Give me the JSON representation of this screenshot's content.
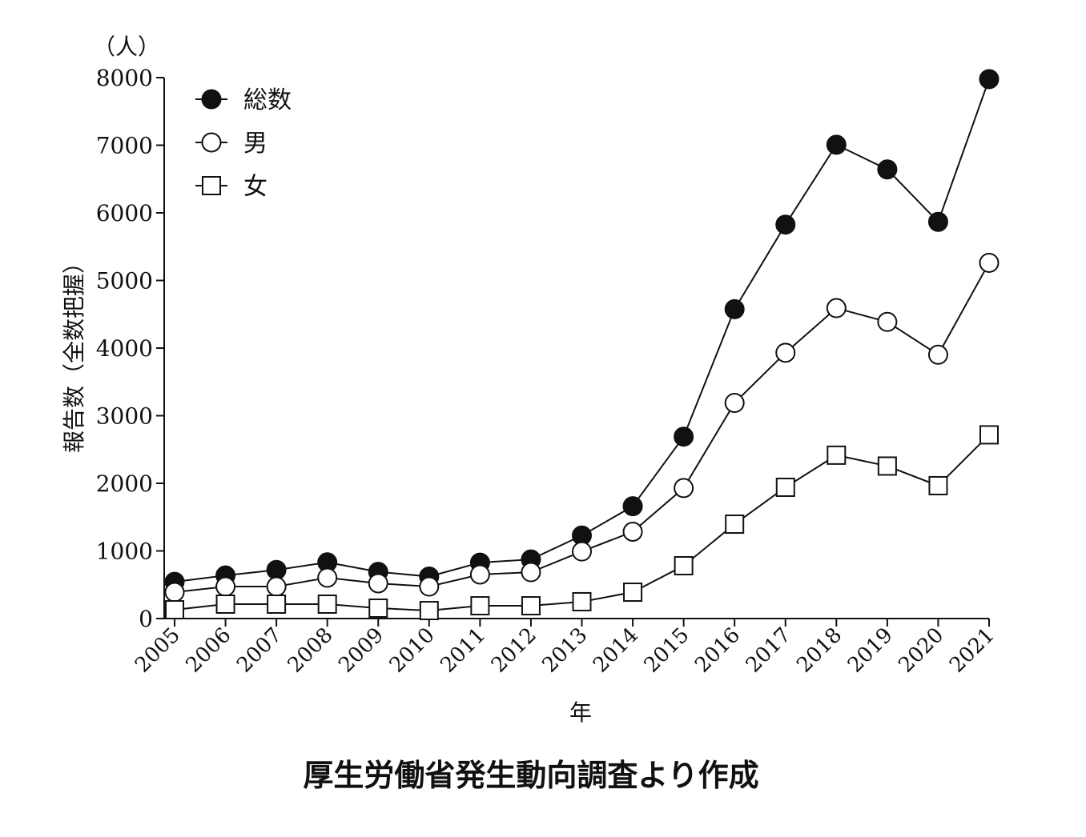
{
  "chart_data": {
    "type": "line",
    "title": "厚生労働省発生動向調査より作成",
    "xlabel": "年",
    "ylabel": "報告数（全数把握）",
    "yunit": "（人）",
    "ylim": [
      0,
      8000
    ],
    "yticks": [
      0,
      1000,
      2000,
      3000,
      4000,
      5000,
      6000,
      7000,
      8000
    ],
    "grid": false,
    "legend_position": "top-left",
    "x": [
      "2005",
      "2006",
      "2007",
      "2008",
      "2009",
      "2010",
      "2011",
      "2012",
      "2013",
      "2014",
      "2015",
      "2016",
      "2017",
      "2018",
      "2019",
      "2020",
      "2021"
    ],
    "series": [
      {
        "name": "総数",
        "marker": "filled-circle",
        "values": [
          543,
          637,
          719,
          831,
          691,
          621,
          827,
          875,
          1228,
          1661,
          2690,
          4575,
          5826,
          7007,
          6642,
          5867,
          7978
        ]
      },
      {
        "name": "男",
        "marker": "open-circle",
        "values": [
          390,
          473,
          473,
          604,
          521,
          473,
          651,
          686,
          992,
          1284,
          1930,
          3189,
          3931,
          4591,
          4387,
          3902,
          5261
        ]
      },
      {
        "name": "女",
        "marker": "open-square",
        "values": [
          130,
          213,
          213,
          213,
          154,
          118,
          189,
          189,
          249,
          390,
          781,
          1396,
          1941,
          2416,
          2255,
          1965,
          2717
        ]
      }
    ]
  }
}
